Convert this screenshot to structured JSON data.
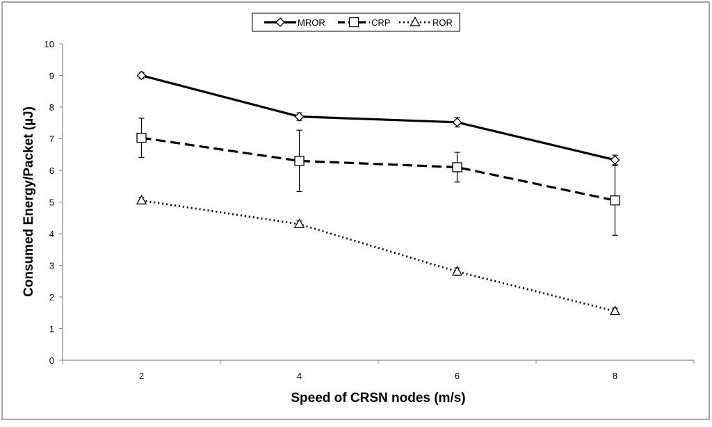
{
  "chart_data": {
    "type": "line",
    "title": "",
    "xlabel": "Speed of CRSN nodes (m/s)",
    "ylabel": "Consumed Energy/Packet (µJ)",
    "x": [
      2,
      4,
      6,
      8
    ],
    "x_tick_labels": [
      "2",
      "4",
      "6",
      "8"
    ],
    "ylim": [
      0,
      10
    ],
    "y_ticks": [
      0,
      1,
      2,
      3,
      4,
      5,
      6,
      7,
      8,
      9,
      10
    ],
    "y_tick_labels": [
      "0",
      "1",
      "2",
      "3",
      "4",
      "5",
      "6",
      "7",
      "8",
      "9",
      "10"
    ],
    "grid": false,
    "legend_position": "top-center",
    "series": [
      {
        "name": "MROR",
        "values": [
          9.0,
          7.7,
          7.52,
          6.33
        ],
        "error": [
          0.1,
          0.12,
          0.15,
          0.15
        ],
        "line_style": "solid",
        "marker": "diamond",
        "color": "#000000"
      },
      {
        "name": "CRP",
        "values": [
          7.03,
          6.3,
          6.1,
          5.05
        ],
        "error": [
          0.62,
          0.97,
          0.47,
          1.1
        ],
        "line_style": "dashed",
        "marker": "square",
        "color": "#000000"
      },
      {
        "name": "ROR",
        "values": [
          5.05,
          4.3,
          2.8,
          1.55
        ],
        "error": [
          0.1,
          0.1,
          0.12,
          0.1
        ],
        "line_style": "dotted",
        "marker": "triangle",
        "color": "#000000"
      }
    ]
  }
}
